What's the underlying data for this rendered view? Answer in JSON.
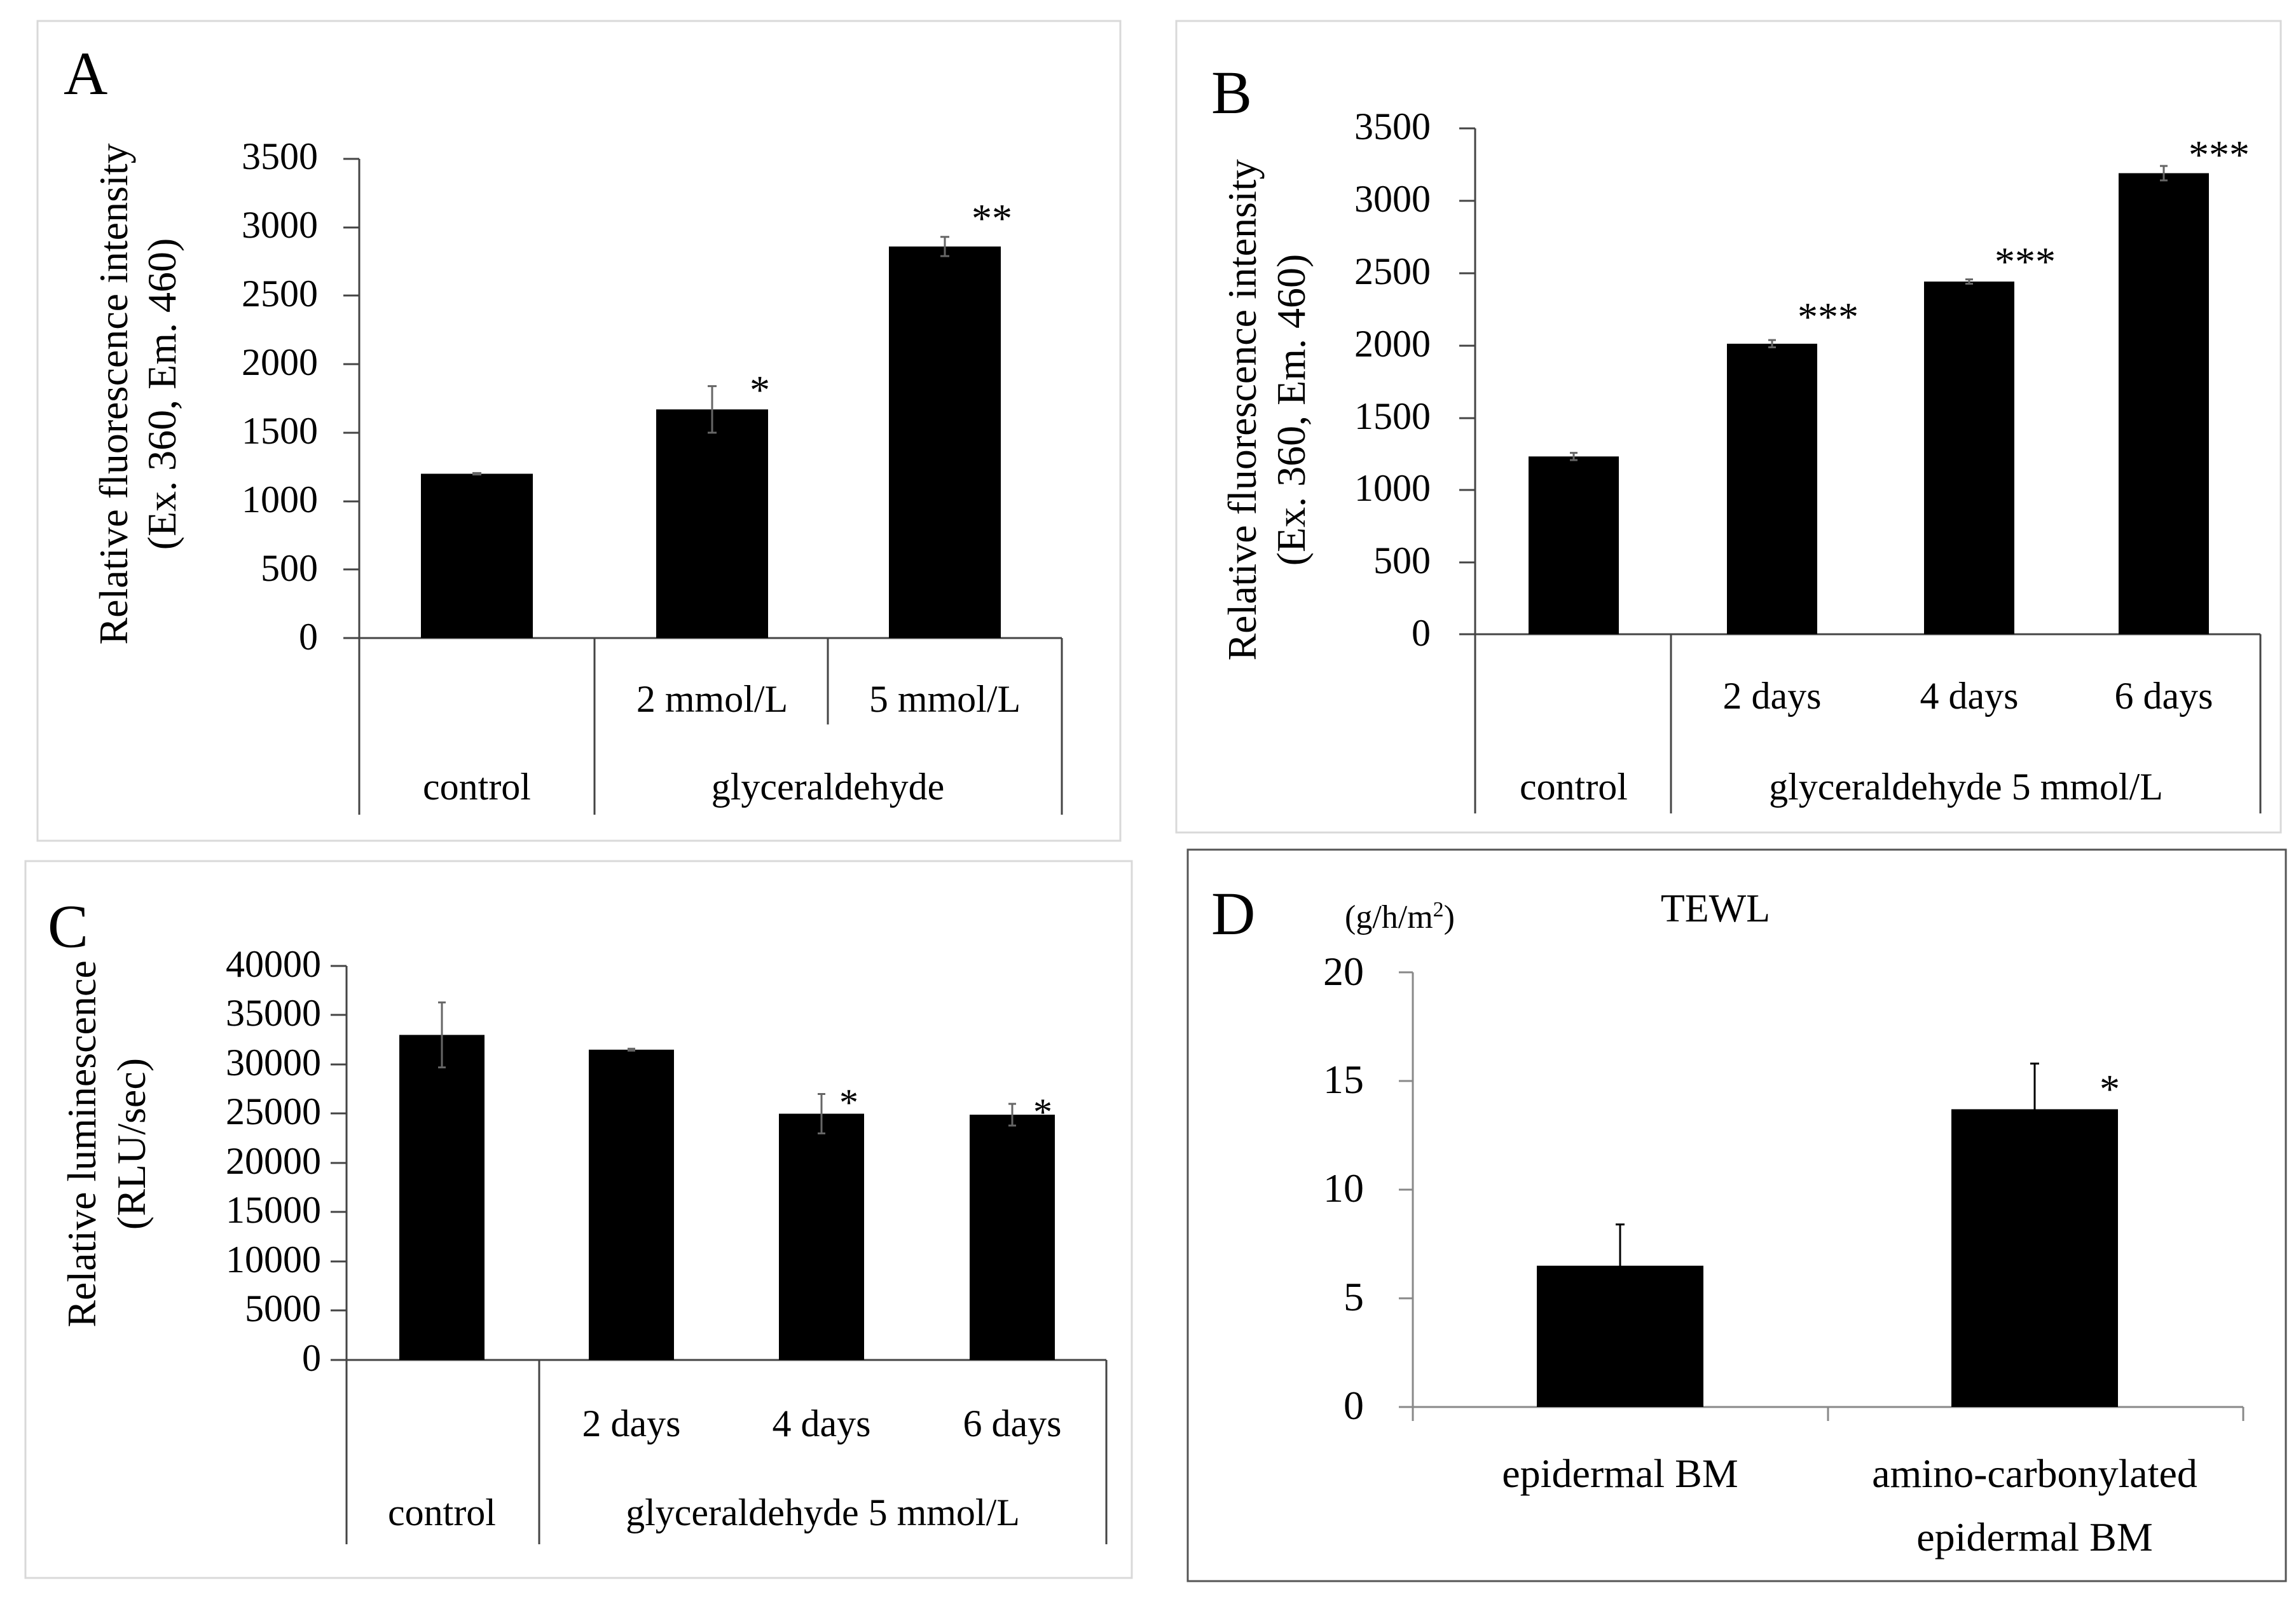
{
  "chart_data": [
    {
      "panel": "A",
      "type": "bar",
      "ylabel_line1": "Relative fluorescence intensity",
      "ylabel_line2": "(Ex. 360, Em. 460)",
      "ylim": [
        0,
        3500
      ],
      "yticks": [
        "3500",
        "3000",
        "2500",
        "2000",
        "1500",
        "1000",
        "500",
        "0"
      ],
      "categories": [
        "control",
        "2 mmol/L",
        "5 mmol/L"
      ],
      "values": [
        1200,
        1670,
        2860
      ],
      "errors": [
        5,
        170,
        70
      ],
      "significance": [
        "",
        "*",
        "**"
      ],
      "group_label": "glyceraldehyde"
    },
    {
      "panel": "B",
      "type": "bar",
      "ylabel_line1": "Relative fluorescence intensity",
      "ylabel_line2": "(Ex. 360, Em. 460)",
      "ylim": [
        0,
        3500
      ],
      "yticks": [
        "3500",
        "3000",
        "2500",
        "2000",
        "1500",
        "1000",
        "500",
        "0"
      ],
      "categories": [
        "control",
        "2 days",
        "4 days",
        "6 days"
      ],
      "values": [
        1230,
        2010,
        2440,
        3190
      ],
      "errors": [
        25,
        25,
        15,
        50
      ],
      "significance": [
        "",
        "***",
        "***",
        "***"
      ],
      "group_label": "glyceraldehyde 5 mmol/L"
    },
    {
      "panel": "C",
      "type": "bar",
      "ylabel_line1": "Relative luminescence",
      "ylabel_line2": "(RLU/sec)",
      "ylim": [
        0,
        40000
      ],
      "yticks": [
        "40000",
        "35000",
        "30000",
        "25000",
        "20000",
        "15000",
        "10000",
        "5000",
        "0"
      ],
      "categories": [
        "control",
        "2 days",
        "4 days",
        "6 days"
      ],
      "values": [
        33000,
        31500,
        25000,
        24900
      ],
      "errors": [
        3300,
        100,
        2000,
        1100
      ],
      "significance": [
        "",
        "",
        "*",
        "*"
      ],
      "group_label": "glyceraldehyde 5 mmol/L"
    },
    {
      "panel": "D",
      "type": "bar",
      "title": "TEWL",
      "unit_prefix": "(g/h/m",
      "unit_sup": "2",
      "unit_suffix": ")",
      "ylim": [
        0,
        20
      ],
      "yticks": [
        "20",
        "15",
        "10",
        "5",
        "0"
      ],
      "categories": [
        "epidermal BM",
        "amino-carbonylated epidermal BM"
      ],
      "category_lines": [
        [
          "epidermal BM"
        ],
        [
          "amino-carbonylated",
          "epidermal BM"
        ]
      ],
      "values": [
        6.5,
        13.7
      ],
      "errors": [
        1.9,
        2.1
      ],
      "significance": [
        "",
        "*"
      ]
    }
  ]
}
